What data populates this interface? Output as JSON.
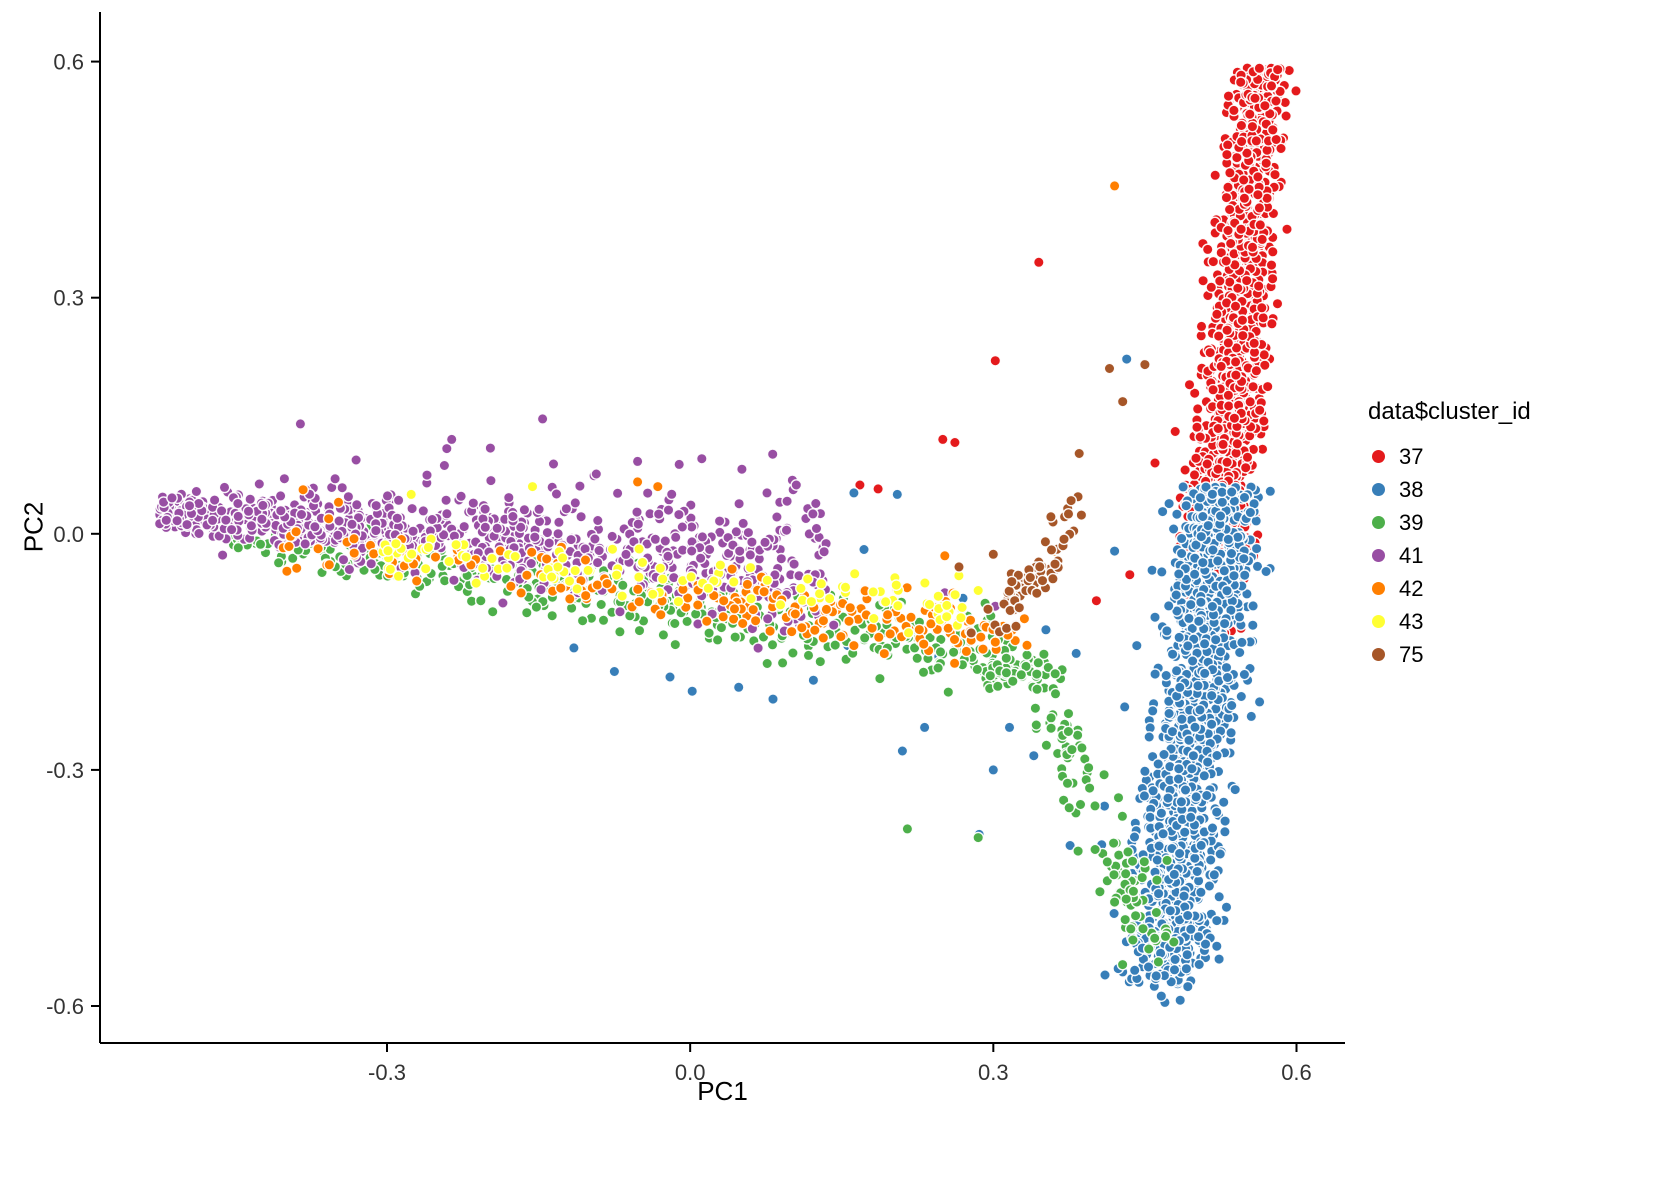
{
  "chart_data": {
    "type": "scatter",
    "title": "",
    "xlabel": "PC1",
    "ylabel": "PC2",
    "xlim": [
      -0.584,
      0.648
    ],
    "ylim": [
      -0.647,
      0.663
    ],
    "x_tick_labels": [
      "-0.3",
      "0.0",
      "0.3",
      "0.6"
    ],
    "x_tick_values": [
      -0.3,
      0.0,
      0.3,
      0.6
    ],
    "y_tick_labels": [
      "-0.6",
      "-0.3",
      "0.0",
      "0.3",
      "0.6"
    ],
    "y_tick_values": [
      -0.6,
      -0.3,
      0.0,
      0.3,
      0.6
    ],
    "grid": false,
    "background": "#ffffff",
    "axis_color": "#000000",
    "tick_label_color": "#333333",
    "legend": {
      "title": "data$cluster_id",
      "position": "right",
      "entries": [
        {
          "label": "37",
          "color": "#E41A1C"
        },
        {
          "label": "38",
          "color": "#377EB8"
        },
        {
          "label": "39",
          "color": "#4DAF4A"
        },
        {
          "label": "41",
          "color": "#984EA3"
        },
        {
          "label": "42",
          "color": "#FF7F00"
        },
        {
          "label": "43",
          "color": "#FFFF33"
        },
        {
          "label": "75",
          "color": "#A65628"
        }
      ]
    },
    "point_style": {
      "radius": 5.2,
      "stroke": "#ffffff",
      "stroke_width": 1.4
    },
    "seed": 1234,
    "series": [
      {
        "name": "37",
        "color": "#E41A1C",
        "components": [
          {
            "type": "vband",
            "n": 1350,
            "y0": -0.02,
            "y1": 0.592,
            "ypow": 1.25,
            "x0": 0.522,
            "x1": 0.565,
            "sd0": 0.017,
            "sd1": 0.013
          },
          {
            "type": "vband",
            "n": 70,
            "y0": -0.135,
            "y1": -0.02,
            "ypow": 1.0,
            "x0": 0.515,
            "x1": 0.522,
            "sd0": 0.012,
            "sd1": 0.014
          }
        ],
        "outliers": [
          [
            0.168,
            0.062
          ],
          [
            0.186,
            0.057
          ],
          [
            0.25,
            0.12
          ],
          [
            0.262,
            0.116
          ],
          [
            0.302,
            0.22
          ],
          [
            0.345,
            0.345
          ],
          [
            0.46,
            0.09
          ],
          [
            0.435,
            -0.052
          ],
          [
            0.402,
            -0.085
          ],
          [
            0.48,
            0.13
          ]
        ]
      },
      {
        "name": "38",
        "color": "#377EB8",
        "components": [
          {
            "type": "vband",
            "n": 1350,
            "y0": -0.575,
            "y1": 0.06,
            "ypow": 0.82,
            "x0": 0.468,
            "x1": 0.527,
            "sd0": 0.022,
            "sd1": 0.018
          },
          {
            "type": "blob",
            "n": 70,
            "cx": 0.472,
            "cy": -0.49,
            "sx": 0.018,
            "sy": 0.05,
            "corr": 0
          }
        ],
        "outliers": [
          [
            -0.115,
            -0.145
          ],
          [
            -0.075,
            -0.175
          ],
          [
            -0.02,
            -0.182
          ],
          [
            0.002,
            -0.2
          ],
          [
            0.048,
            -0.195
          ],
          [
            0.082,
            -0.21
          ],
          [
            0.162,
            0.052
          ],
          [
            0.205,
            0.05
          ],
          [
            0.172,
            -0.02
          ],
          [
            0.222,
            -0.13
          ],
          [
            0.246,
            -0.156
          ],
          [
            0.27,
            -0.082
          ],
          [
            0.3,
            -0.17
          ],
          [
            0.316,
            -0.246
          ],
          [
            0.3,
            -0.3
          ],
          [
            0.34,
            -0.282
          ],
          [
            0.232,
            -0.246
          ],
          [
            0.376,
            -0.396
          ],
          [
            0.41,
            -0.346
          ],
          [
            0.286,
            -0.382
          ],
          [
            0.43,
            -0.22
          ],
          [
            0.46,
            -0.106
          ],
          [
            0.432,
            0.222
          ],
          [
            0.382,
            -0.152
          ],
          [
            0.352,
            -0.122
          ],
          [
            0.336,
            -0.066
          ],
          [
            0.42,
            -0.022
          ],
          [
            0.442,
            -0.142
          ],
          [
            0.21,
            -0.276
          ],
          [
            0.156,
            -0.142
          ],
          [
            0.092,
            -0.165
          ],
          [
            0.122,
            -0.186
          ]
        ]
      },
      {
        "name": "39",
        "color": "#4DAF4A",
        "components": [
          {
            "type": "hband",
            "n": 430,
            "x0": -0.46,
            "x1": 0.3,
            "xpow": 0.82,
            "y0": -0.006,
            "y1": -0.148,
            "sd0": 0.012,
            "sd1": 0.026
          },
          {
            "type": "curve",
            "n": 115,
            "sd": 0.013,
            "path": [
              [
                0.3,
                -0.155
              ],
              [
                0.345,
                -0.19
              ],
              [
                0.365,
                -0.245
              ],
              [
                0.385,
                -0.3
              ],
              [
                0.402,
                -0.352
              ],
              [
                0.425,
                -0.43
              ],
              [
                0.44,
                -0.472
              ],
              [
                0.456,
                -0.522
              ]
            ]
          },
          {
            "type": "blob",
            "n": 55,
            "cx": 0.325,
            "cy": -0.168,
            "sx": 0.03,
            "sy": 0.014,
            "corr": -0.3
          }
        ],
        "outliers": [
          [
            0.215,
            -0.375
          ],
          [
            0.285,
            -0.386
          ],
          [
            0.462,
            -0.44
          ],
          [
            0.436,
            -0.502
          ],
          [
            -0.305,
            0.028
          ],
          [
            0.472,
            -0.415
          ]
        ]
      },
      {
        "name": "41",
        "color": "#984EA3",
        "components": [
          {
            "type": "hband",
            "n": 880,
            "x0": -0.525,
            "x1": 0.135,
            "xpow": 1.3,
            "y0": 0.028,
            "y1": -0.048,
            "sd0": 0.011,
            "sd1": 0.042
          },
          {
            "type": "blob",
            "n": 26,
            "cx": -0.13,
            "cy": 0.078,
            "sx": 0.16,
            "sy": 0.032,
            "corr": 0
          }
        ],
        "outliers": [
          [
            -0.146,
            0.146
          ],
          [
            -0.236,
            0.12
          ],
          [
            0.076,
            0.052
          ],
          [
            0.102,
            0.056
          ],
          [
            -0.052,
            0.092
          ],
          [
            0.142,
            -0.116
          ],
          [
            0.172,
            -0.072
          ],
          [
            0.192,
            -0.086
          ],
          [
            0.322,
            -0.116
          ],
          [
            0.302,
            -0.092
          ],
          [
            0.252,
            -0.075
          ],
          [
            0.105,
            0.062
          ]
        ]
      },
      {
        "name": "42",
        "color": "#FF7F00",
        "components": [
          {
            "type": "hband",
            "n": 165,
            "x0": -0.2,
            "x1": 0.335,
            "xpow": 0.75,
            "y0": -0.05,
            "y1": -0.128,
            "sd0": 0.02,
            "sd1": 0.02
          },
          {
            "type": "hband",
            "n": 32,
            "x0": -0.42,
            "x1": -0.2,
            "xpow": 1.0,
            "y0": -0.005,
            "y1": -0.04,
            "sd0": 0.014,
            "sd1": 0.016
          }
        ],
        "outliers": [
          [
            -0.383,
            0.056
          ],
          [
            -0.348,
            0.04
          ],
          [
            -0.052,
            0.066
          ],
          [
            0.42,
            0.442
          ],
          [
            0.36,
            -0.022
          ],
          [
            -0.032,
            0.06
          ],
          [
            -0.142,
            -0.032
          ],
          [
            0.162,
            -0.142
          ],
          [
            0.252,
            -0.028
          ]
        ]
      },
      {
        "name": "43",
        "color": "#FFFF33",
        "components": [
          {
            "type": "hband",
            "n": 112,
            "x0": -0.32,
            "x1": 0.27,
            "xpow": 1.0,
            "y0": -0.02,
            "y1": -0.092,
            "sd0": 0.013,
            "sd1": 0.022
          }
        ],
        "outliers": [
          [
            -0.276,
            0.05
          ],
          [
            -0.156,
            0.06
          ],
          [
            0.285,
            -0.072
          ]
        ]
      },
      {
        "name": "75",
        "color": "#A65628",
        "components": [
          {
            "type": "blob",
            "n": 58,
            "cx": 0.335,
            "cy": -0.062,
            "sx": 0.018,
            "sy": 0.026,
            "corr": 0.8
          },
          {
            "type": "curve",
            "n": 10,
            "sd": 0.006,
            "path": [
              [
                0.352,
                -0.012
              ],
              [
                0.368,
                0.022
              ],
              [
                0.383,
                0.06
              ],
              [
                0.396,
                0.098
              ]
            ]
          }
        ],
        "outliers": [
          [
            0.415,
            0.21
          ],
          [
            0.385,
            0.102
          ],
          [
            0.3,
            -0.026
          ],
          [
            0.266,
            -0.042
          ],
          [
            0.45,
            0.215
          ],
          [
            0.428,
            0.168
          ]
        ]
      }
    ]
  }
}
